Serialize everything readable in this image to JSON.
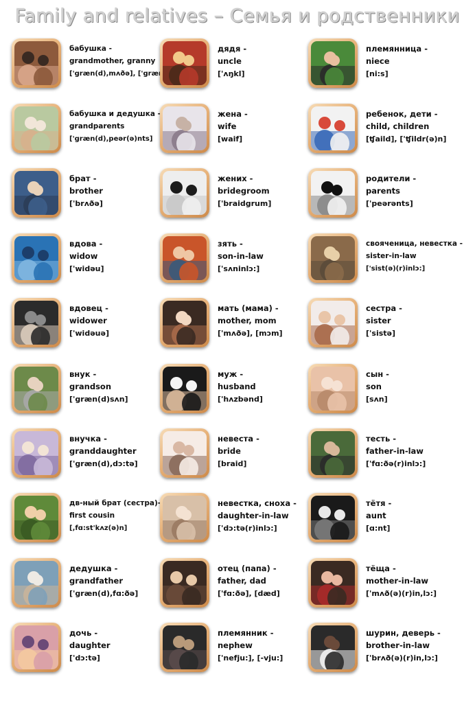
{
  "title": "Family and relatives – Семья и родственники",
  "columns": [
    [
      {
        "key": "grandmother",
        "ru": "бабушка -",
        "en": "grandmother, granny",
        "tr": "['græn(d),mʌðə], ['græni]",
        "icon": "grandmother-photo-icon",
        "colors": [
          "#8d5a3c",
          "#3a2a22",
          "#d8a58a"
        ],
        "small": true
      },
      {
        "key": "grandparents",
        "ru": "бабушка и дедушка -",
        "en": "grandparents",
        "tr": "['græn(d),peər(ə)nts]",
        "icon": "grandparents-photo-icon",
        "colors": [
          "#b9c9a0",
          "#f1e6d8",
          "#d7b08c"
        ],
        "small": true
      },
      {
        "key": "brother",
        "ru": "брат -",
        "en": "brother",
        "tr": "['brʌðə]",
        "icon": "brothers-photo-icon",
        "colors": [
          "#3d5e8a",
          "#e9d2b9",
          "#2b3d57"
        ],
        "small": false
      },
      {
        "key": "widow",
        "ru": "вдова -",
        "en": "widow",
        "tr": "['widəu]",
        "icon": "widow-photo-icon",
        "colors": [
          "#2a73b5",
          "#1c3e6b",
          "#7fb6e0"
        ],
        "small": false
      },
      {
        "key": "widower",
        "ru": "вдовец -",
        "en": "widower",
        "tr": "['widəuə]",
        "icon": "widower-photo-icon",
        "colors": [
          "#2b2b2b",
          "#8a8a8a",
          "#d9cbbb"
        ],
        "small": false
      },
      {
        "key": "grandson",
        "ru": "внук -",
        "en": "grandson",
        "tr": "['græn(d)sʌn]",
        "icon": "grandson-photo-icon",
        "colors": [
          "#6d8a4a",
          "#e7d2bf",
          "#a9a9a9"
        ],
        "small": false
      },
      {
        "key": "granddaughter",
        "ru": "внучка -",
        "en": "granddaughter",
        "tr": "['græn(d),dɔ:tə]",
        "icon": "granddaughter-photo-icon",
        "colors": [
          "#c8b8d8",
          "#f2e4d6",
          "#7f6aa0"
        ],
        "small": false
      },
      {
        "key": "cousin",
        "ru": "дв-ный брат (сестра)-",
        "en": "first cousin",
        "tr": "[,fɑ:st'kʌz(ə)n]",
        "icon": "cousins-photo-icon",
        "colors": [
          "#5f8a3a",
          "#f0cfa8",
          "#3a5a22"
        ],
        "small": true
      },
      {
        "key": "grandfather",
        "ru": "дедушка -",
        "en": "grandfather",
        "tr": "['græn(d),fɑ:ðə]",
        "icon": "grandfather-photo-icon",
        "colors": [
          "#7ea0b8",
          "#eeeae4",
          "#c9b49a"
        ],
        "small": false
      },
      {
        "key": "daughter",
        "ru": "дочь -",
        "en": "daughter",
        "tr": "['dɔ:tə]",
        "icon": "daughter-photo-icon",
        "colors": [
          "#d9a0a8",
          "#6b4a78",
          "#f4c9a0"
        ],
        "small": false
      }
    ],
    [
      {
        "key": "uncle",
        "ru": "дядя -",
        "en": "uncle",
        "tr": "['ʌŋkl]",
        "icon": "uncle-photo-icon",
        "colors": [
          "#b53a2a",
          "#f2c98a",
          "#4a2a1a"
        ],
        "small": false
      },
      {
        "key": "wife",
        "ru": "жена -",
        "en": "wife",
        "tr": "[waif]",
        "icon": "ring-photo-icon",
        "colors": [
          "#e8e4ea",
          "#c7b2a6",
          "#8a7a8a"
        ],
        "small": false
      },
      {
        "key": "bridegroom",
        "ru": "жених -",
        "en": "bridegroom",
        "tr": "['braidgrum]",
        "icon": "groom-photo-icon",
        "colors": [
          "#eeeeee",
          "#1c1c1c",
          "#c8c8c8"
        ],
        "small": false
      },
      {
        "key": "soninlaw",
        "ru": "зять -",
        "en": "son-in-law",
        "tr": "['sʌninlɔ:]",
        "icon": "son-in-law-photo-icon",
        "colors": [
          "#c9552a",
          "#efc7a4",
          "#3a5a7a"
        ],
        "small": false
      },
      {
        "key": "mother",
        "ru": "мать (мама) -",
        "en": "mother, mom",
        "tr": "['mʌðə], [mɔm]",
        "icon": "mother-photo-icon",
        "colors": [
          "#3a2a22",
          "#f2d8c2",
          "#a86a4a"
        ],
        "small": false
      },
      {
        "key": "husband",
        "ru": "муж -",
        "en": "husband",
        "tr": "['hʌzbənd]",
        "icon": "husband-photo-icon",
        "colors": [
          "#1a1a1a",
          "#f4f4f4",
          "#d8b89a"
        ],
        "small": false
      },
      {
        "key": "bride",
        "ru": "невеста -",
        "en": "bride",
        "tr": "[braid]",
        "icon": "bride-photo-icon",
        "colors": [
          "#f6ece6",
          "#d9b8a4",
          "#8a6a5a"
        ],
        "small": false
      },
      {
        "key": "daughterinlaw",
        "ru": "невестка, сноха -",
        "en": "daughter-in-law",
        "tr": "['dɔ:tə(r)inlɔ:]",
        "icon": "daughter-in-law-photo-icon",
        "colors": [
          "#d8c0a8",
          "#f4e2d2",
          "#9a7a62"
        ],
        "small": false
      },
      {
        "key": "father",
        "ru": "отец (папа) -",
        "en": "father, dad",
        "tr": "['fɑ:ðə], [dæd]",
        "icon": "father-photo-icon",
        "colors": [
          "#3a2a22",
          "#e8c9a8",
          "#6a4a3a"
        ],
        "small": false
      },
      {
        "key": "nephew",
        "ru": "племянник -",
        "en": "nephew",
        "tr": "['nefju:], [-vju:]",
        "icon": "nephew-photo-icon",
        "colors": [
          "#2a2a2a",
          "#b89a7a",
          "#5a4a4a"
        ],
        "small": false
      }
    ],
    [
      {
        "key": "niece",
        "ru": "племянница -",
        "en": "niece",
        "tr": "[ni:s]",
        "icon": "niece-photo-icon",
        "colors": [
          "#4a8a3a",
          "#e8c0a0",
          "#2a2a2a"
        ],
        "small": false
      },
      {
        "key": "children",
        "ru": "ребенок, дети -",
        "en": "child, children",
        "tr": "[ʧaild], ['ʧildr(ə)n]",
        "icon": "children-photo-icon",
        "colors": [
          "#f2f2f2",
          "#d84a3a",
          "#3a6ab8"
        ],
        "small": false
      },
      {
        "key": "parents",
        "ru": "родители -",
        "en": "parents",
        "tr": "['peərənts]",
        "icon": "parents-photo-icon",
        "colors": [
          "#f2f2f2",
          "#111111",
          "#888888"
        ],
        "small": false
      },
      {
        "key": "sisterinlaw",
        "ru": "свояченица, невестка -",
        "en": "sister-in-law",
        "tr": "['sist(ə)(r)inlɔ:]",
        "icon": "sister-in-law-photo-icon",
        "colors": [
          "#8a6a4a",
          "#e8d0a8",
          "#5a4a3a"
        ],
        "small": true
      },
      {
        "key": "sister",
        "ru": "сестра -",
        "en": "sister",
        "tr": "['sistə]",
        "icon": "sisters-photo-icon",
        "colors": [
          "#f2ecea",
          "#e9c5a8",
          "#a86a4a"
        ],
        "small": false
      },
      {
        "key": "son",
        "ru": "сын -",
        "en": "son",
        "tr": "[sʌn]",
        "icon": "son-photo-icon",
        "colors": [
          "#e9c2a8",
          "#f6e2d4",
          "#b88a6a"
        ],
        "small": false
      },
      {
        "key": "fatherinlaw",
        "ru": "тесть -",
        "en": "father-in-law",
        "tr": "['fɑ:ðə(r)inlɔ:]",
        "icon": "father-in-law-photo-icon",
        "colors": [
          "#4a6a3a",
          "#d8b89a",
          "#2a2a2a"
        ],
        "small": false
      },
      {
        "key": "aunt",
        "ru": "тётя -",
        "en": "aunt",
        "tr": "[ɑ:nt]",
        "icon": "aunt-photo-icon",
        "colors": [
          "#1a1a1a",
          "#e8e8e8",
          "#7a7a7a"
        ],
        "small": false
      },
      {
        "key": "motherinlaw",
        "ru": "тёща -",
        "en": "mother-in-law",
        "tr": "['mʌð(ə)(r)in,lɔ:]",
        "icon": "mother-in-law-photo-icon",
        "colors": [
          "#3a2a22",
          "#e8b8a0",
          "#a82a2a"
        ],
        "small": false
      },
      {
        "key": "brotherinlaw",
        "ru": "шурин, деверь -",
        "en": "brother-in-law",
        "tr": "['brʌð(ə)(r)in,lɔ:]",
        "icon": "brothers-in-law-photo-icon",
        "colors": [
          "#2a2a2a",
          "#6a4a3a",
          "#f2f2f2"
        ],
        "small": false
      }
    ]
  ]
}
